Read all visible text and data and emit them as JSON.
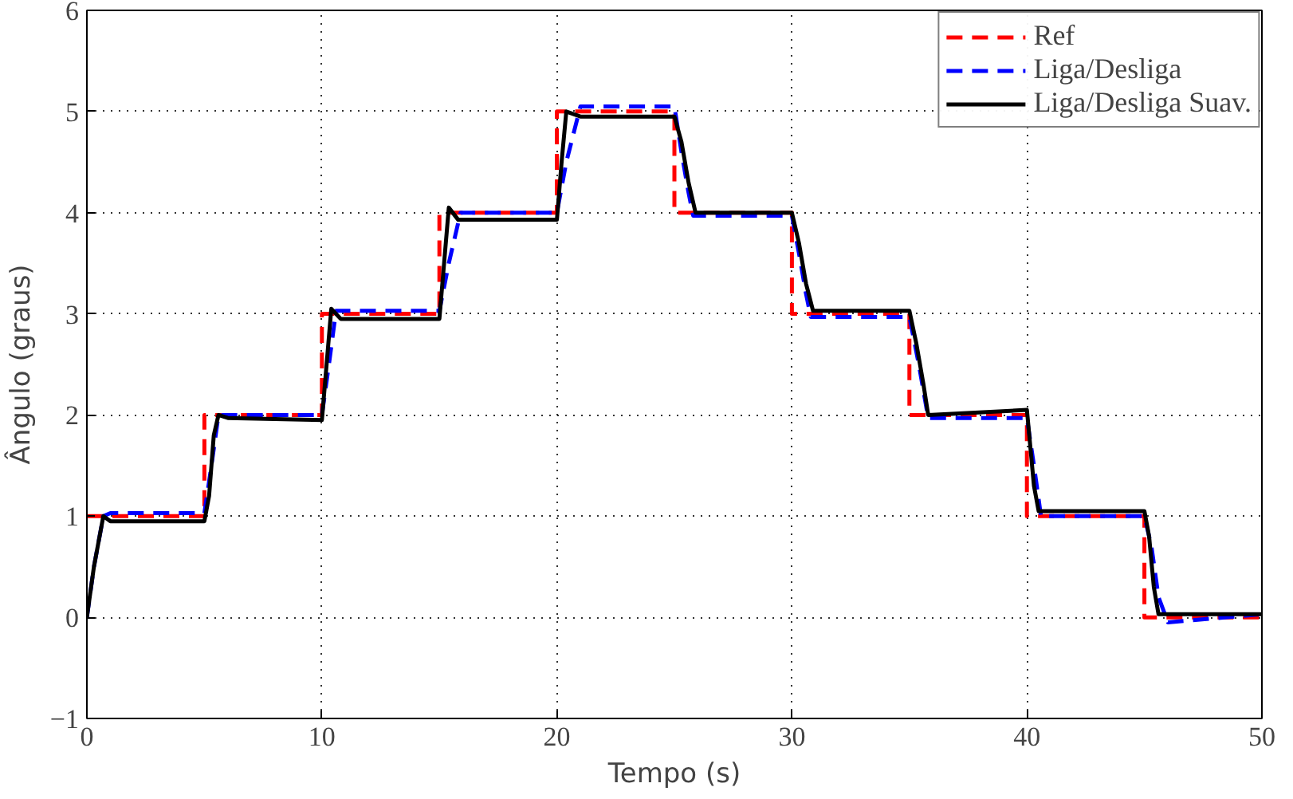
{
  "chart_data": {
    "type": "line",
    "xlabel": "Tempo (s)",
    "ylabel": "Ângulo (graus)",
    "xlim": [
      0,
      50
    ],
    "ylim": [
      -1,
      6
    ],
    "xticks": [
      0,
      10,
      20,
      30,
      40,
      50
    ],
    "yticks": [
      {
        "value": -1,
        "label": "−1"
      },
      0,
      1,
      2,
      3,
      4,
      5,
      6
    ],
    "grid": true,
    "legend": "top right",
    "series": [
      {
        "name": "Ref",
        "color": "#ff0000",
        "line_style": "dashed",
        "x": [
          0,
          5,
          5,
          10,
          10,
          15,
          15,
          20,
          20,
          25,
          25,
          30,
          30,
          35,
          35,
          40,
          40,
          45,
          45,
          50
        ],
        "values": [
          1,
          1,
          2,
          2,
          3,
          3,
          4,
          4,
          5,
          5,
          4,
          4,
          3,
          3,
          2,
          2,
          1,
          1,
          0,
          0
        ]
      },
      {
        "name": "Liga/Desliga",
        "color": "#0000ff",
        "line_style": "dashed",
        "x": [
          0,
          0.3,
          0.7,
          1.0,
          5.0,
          5.3,
          5.6,
          10.0,
          10.3,
          10.6,
          15.0,
          15.4,
          15.9,
          20,
          20.4,
          21.0,
          25.0,
          25.3,
          25.6,
          25.8,
          30,
          30.3,
          30.6,
          30.8,
          35,
          35.4,
          35.8,
          40,
          40.3,
          40.6,
          45,
          45.3,
          45.6,
          46,
          47,
          50
        ],
        "values": [
          0,
          0.5,
          1.0,
          1.03,
          1.03,
          1.5,
          2.0,
          2.0,
          2.5,
          3.03,
          3.03,
          3.5,
          4.0,
          4.0,
          4.5,
          5.05,
          5.05,
          4.6,
          4.2,
          3.97,
          3.97,
          3.6,
          3.2,
          2.97,
          2.97,
          2.5,
          1.97,
          1.97,
          1.5,
          1.0,
          1.0,
          0.7,
          0.2,
          -0.05,
          -0.03,
          0.03
        ]
      },
      {
        "name": "Liga/Desliga Suav.",
        "color": "#000000",
        "line_style": "solid",
        "x": [
          0,
          0.3,
          0.7,
          1.0,
          5.0,
          5.2,
          5.4,
          5.6,
          6.0,
          10.0,
          10.2,
          10.4,
          10.8,
          15.0,
          15.2,
          15.4,
          15.8,
          20.0,
          20.2,
          20.4,
          21,
          25.0,
          25.3,
          25.6,
          25.9,
          30.0,
          30.3,
          30.6,
          30.9,
          35.0,
          35.3,
          35.6,
          35.8,
          40.0,
          40.1,
          40.3,
          40.5,
          45.0,
          45.2,
          45.4,
          45.6,
          50
        ],
        "values": [
          0,
          0.5,
          1.0,
          0.95,
          0.95,
          1.2,
          1.8,
          2.0,
          1.97,
          1.95,
          2.5,
          3.05,
          2.95,
          2.95,
          3.5,
          4.05,
          3.93,
          3.93,
          4.5,
          5.0,
          4.95,
          4.95,
          4.7,
          4.3,
          4.0,
          4.0,
          3.7,
          3.3,
          3.03,
          3.03,
          2.7,
          2.3,
          2.0,
          2.05,
          1.8,
          1.3,
          1.05,
          1.05,
          0.8,
          0.3,
          0.03,
          0.03
        ]
      }
    ]
  }
}
